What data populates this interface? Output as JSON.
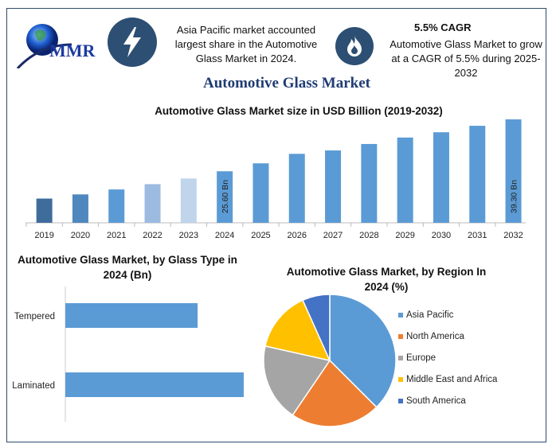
{
  "header": {
    "logo_text": "MMR",
    "icons": [
      "lightning-icon",
      "flame-icon"
    ],
    "highlight1": "Asia Pacific market accounted largest share in the Automotive Glass Market in 2024.",
    "cagr_title": "5.5% CAGR",
    "highlight2": "Automotive Glass Market to grow at a CAGR of 5.5% during 2025-2032",
    "main_title": "Automotive Glass Market"
  },
  "colors": {
    "frame": "#2e4a6b",
    "icon_bg": "#2c4f73",
    "title": "#1f3c73",
    "bar": "#5b9bd5"
  },
  "chart_data": [
    {
      "type": "bar",
      "title": "Automotive Glass Market size in USD Billion (2019-2032)",
      "categories": [
        "2019",
        "2020",
        "2021",
        "2022",
        "2023",
        "2024",
        "2025",
        "2026",
        "2027",
        "2028",
        "2029",
        "2030",
        "2031",
        "2032"
      ],
      "values": [
        18.4,
        19.5,
        20.8,
        22.2,
        23.7,
        25.6,
        27.7,
        30.2,
        31.1,
        32.8,
        34.5,
        35.9,
        37.6,
        39.3
      ],
      "bar_colors": [
        "#3e6d9c",
        "#4f88be",
        "#5b9bd5",
        "#9dbbe0",
        "#c0d4ec",
        "#5b9bd5",
        "#5b9bd5",
        "#5b9bd5",
        "#5b9bd5",
        "#5b9bd5",
        "#5b9bd5",
        "#5b9bd5",
        "#5b9bd5",
        "#5b9bd5"
      ],
      "data_labels": {
        "2024": "25.60 Bn",
        "2032": "39.30 Bn"
      },
      "ylim": [
        12,
        40
      ],
      "grid": false
    },
    {
      "type": "bar",
      "orientation": "horizontal",
      "title": "Automotive Glass Market, by Glass Type in 2024 (Bn)",
      "categories": [
        "Tempered",
        "Laminated"
      ],
      "values": [
        10.9,
        14.7
      ],
      "xlim": [
        0,
        16
      ],
      "grid": false
    },
    {
      "type": "pie",
      "title": "Automotive Glass Market, by Region In 2024 (%)",
      "legend_position": "right",
      "series": [
        {
          "name": "Asia Pacific",
          "value": 37.5,
          "color": "#5b9bd5"
        },
        {
          "name": "North America",
          "value": 22,
          "color": "#ed7d31"
        },
        {
          "name": "Europe",
          "value": 19,
          "color": "#a5a5a5"
        },
        {
          "name": "Middle East and Africa",
          "value": 14.8,
          "color": "#ffc000"
        },
        {
          "name": "South America",
          "value": 6.7,
          "color": "#4472c4"
        }
      ]
    }
  ]
}
